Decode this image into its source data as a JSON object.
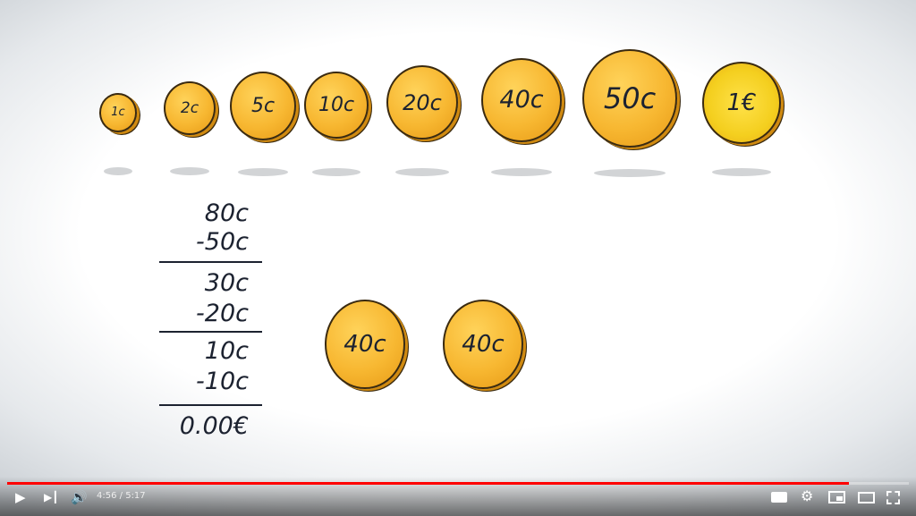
{
  "video": {
    "coins": [
      {
        "label": "1c",
        "type": "cent"
      },
      {
        "label": "2c",
        "type": "cent"
      },
      {
        "label": "5c",
        "type": "cent"
      },
      {
        "label": "10c",
        "type": "cent"
      },
      {
        "label": "20c",
        "type": "cent"
      },
      {
        "label": "40c",
        "type": "cent"
      },
      {
        "label": "50c",
        "type": "cent"
      },
      {
        "label": "1€",
        "type": "euro"
      }
    ],
    "calculation": [
      "80c",
      "-50c",
      "30c",
      "-20c",
      "10c",
      "-10c",
      "0.00€"
    ],
    "selected_coins": [
      "40c",
      "40c"
    ]
  },
  "player": {
    "current_time": "4:56",
    "separator": " / ",
    "duration": "5:17",
    "progress_fraction": 0.934,
    "progress_color": "#ff0000",
    "icons": [
      "play-icon",
      "next-icon",
      "volume-icon",
      "subtitles-icon",
      "settings-icon",
      "miniplayer-icon",
      "theater-icon",
      "fullscreen-icon"
    ]
  }
}
